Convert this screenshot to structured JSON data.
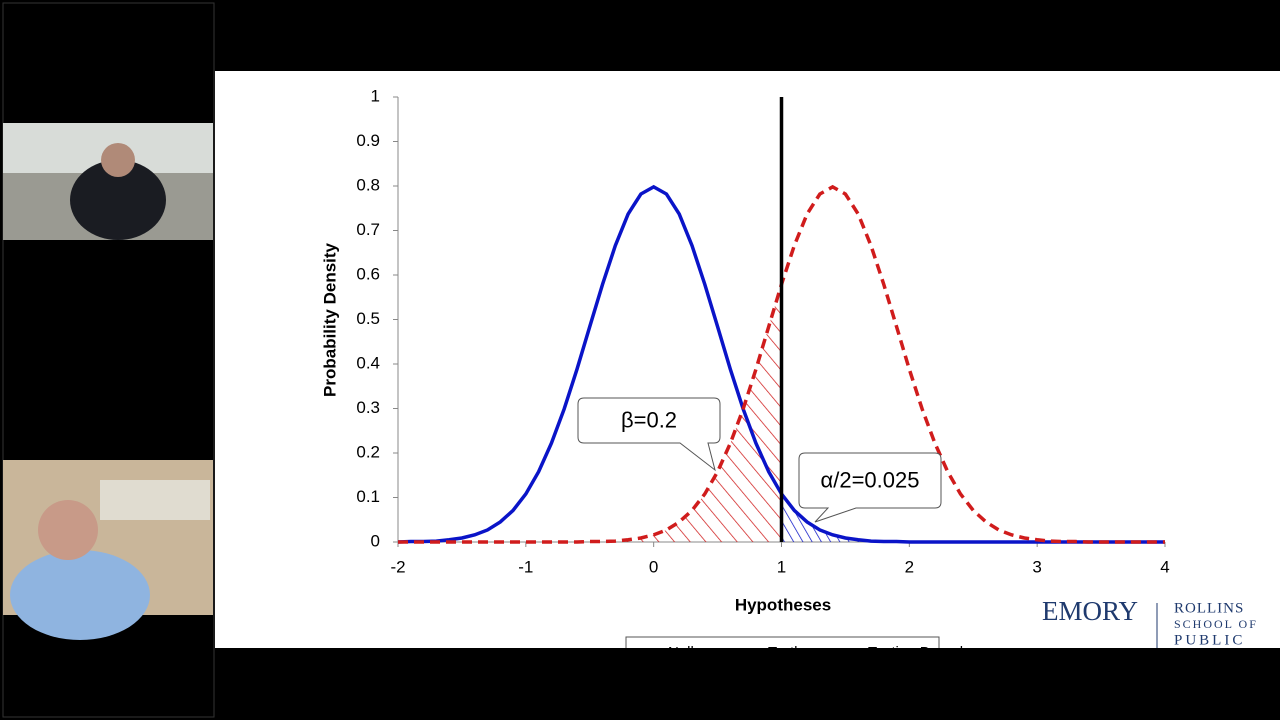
{
  "chart_data": {
    "type": "line",
    "xlabel": "Hypotheses",
    "ylabel": "Probability Density",
    "x": [
      -2,
      -1.9,
      -1.8,
      -1.7,
      -1.6,
      -1.5,
      -1.4,
      -1.3,
      -1.2,
      -1.1,
      -1,
      -0.9,
      -0.8,
      -0.7,
      -0.6,
      -0.5,
      -0.4,
      -0.3,
      -0.2,
      -0.1,
      0,
      0.1,
      0.2,
      0.3,
      0.4,
      0.5,
      0.6,
      0.7,
      0.8,
      0.9,
      1,
      1.1,
      1.2,
      1.3,
      1.4,
      1.5,
      1.6,
      1.7,
      1.8,
      1.9,
      2,
      2.1,
      2.2,
      2.3,
      2.4,
      2.5,
      2.6,
      2.7,
      2.8,
      2.9,
      3,
      3.1,
      3.2,
      3.3,
      3.4,
      3.5,
      3.6,
      3.7,
      3.8,
      3.9,
      4
    ],
    "series": [
      {
        "name": "Null",
        "color": "#0a14c8",
        "dashed": false,
        "values": [
          0,
          0.001,
          0.001,
          0.002,
          0.005,
          0.009,
          0.016,
          0.027,
          0.045,
          0.071,
          0.108,
          0.158,
          0.222,
          0.299,
          0.388,
          0.484,
          0.579,
          0.666,
          0.737,
          0.782,
          0.798,
          0.782,
          0.737,
          0.666,
          0.579,
          0.484,
          0.388,
          0.299,
          0.222,
          0.158,
          0.108,
          0.071,
          0.045,
          0.027,
          0.016,
          0.009,
          0.005,
          0.002,
          0.001,
          0.001,
          0,
          0,
          0,
          0,
          0,
          0,
          0,
          0,
          0,
          0,
          0,
          0,
          0,
          0,
          0,
          0,
          0,
          0,
          0,
          0,
          0
        ]
      },
      {
        "name": "Truth",
        "color": "#d01c1c",
        "dashed": true,
        "values": [
          0,
          0,
          0,
          0,
          0,
          0,
          0,
          0,
          0,
          0,
          0,
          0,
          0,
          0,
          0,
          0.001,
          0.001,
          0.002,
          0.005,
          0.009,
          0.016,
          0.027,
          0.045,
          0.071,
          0.108,
          0.158,
          0.222,
          0.299,
          0.388,
          0.484,
          0.579,
          0.666,
          0.737,
          0.782,
          0.798,
          0.782,
          0.737,
          0.666,
          0.579,
          0.484,
          0.388,
          0.299,
          0.222,
          0.158,
          0.108,
          0.071,
          0.045,
          0.027,
          0.016,
          0.009,
          0.005,
          0.002,
          0.001,
          0.001,
          0,
          0,
          0,
          0,
          0,
          0,
          0
        ]
      }
    ],
    "bound": {
      "name": "Testing Bound",
      "value": 1
    },
    "annotations": [
      "β=0.2",
      "α/2=0.025"
    ],
    "xlim": [
      -2,
      4
    ],
    "xticks": [
      -2,
      -1,
      0,
      1,
      2,
      3,
      4
    ],
    "ylim": [
      0,
      1
    ],
    "yticks": [
      0,
      0.1,
      0.2,
      0.3,
      0.4,
      0.5,
      0.6,
      0.7,
      0.8,
      0.9,
      1
    ],
    "grid": false,
    "legend": "bottom"
  },
  "logo": {
    "name": "EMORY",
    "lines": [
      "ROLLINS",
      "SCHOOL OF",
      "PUBLIC"
    ]
  }
}
